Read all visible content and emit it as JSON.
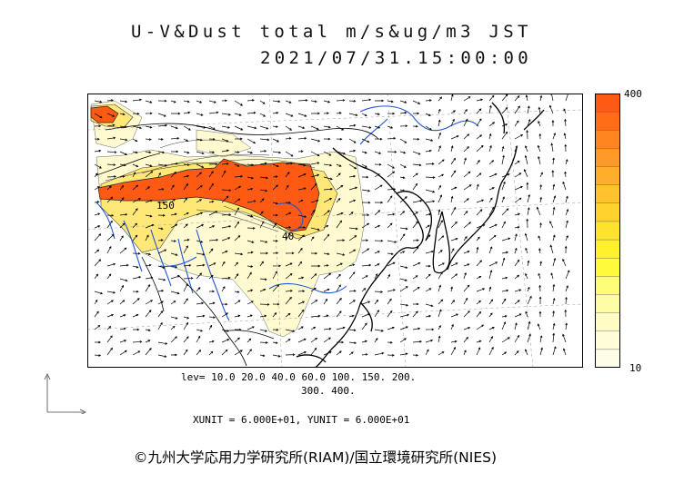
{
  "title": {
    "line1": "U-V&Dust total m/s&ug/m3 JST",
    "line2": "2021/07/31.15:00:00"
  },
  "colorbar": {
    "max_label": "400",
    "min_label": "10",
    "colors": [
      "#ff5a14",
      "#ff6e14",
      "#ff8520",
      "#ff9a28",
      "#ffae2c",
      "#ffc22e",
      "#ffd22e",
      "#ffe22e",
      "#fff02e",
      "#fffa3c",
      "#fffc78",
      "#fffca6",
      "#fffcc4",
      "#fffcd8",
      "#fffde8"
    ]
  },
  "levels": {
    "line1": "lev= 10.0 20.0 40.0 60.0 100. 150. 200.",
    "line2": "300. 400."
  },
  "map_labels": {
    "contour_150": "150",
    "contour_40": "40"
  },
  "units": "XUNIT = 6.000E+01, YUNIT = 6.000E+01",
  "credit": "©九州大学応用力学研究所(RIAM)/国立環境研究所(NIES)",
  "palette": {
    "land_light": "#fffad0",
    "dust_medium": "#ffe878",
    "dust_heavy": "#ff5a14",
    "river": "#2255dd",
    "coast": "#000000",
    "grid": "#999999"
  }
}
